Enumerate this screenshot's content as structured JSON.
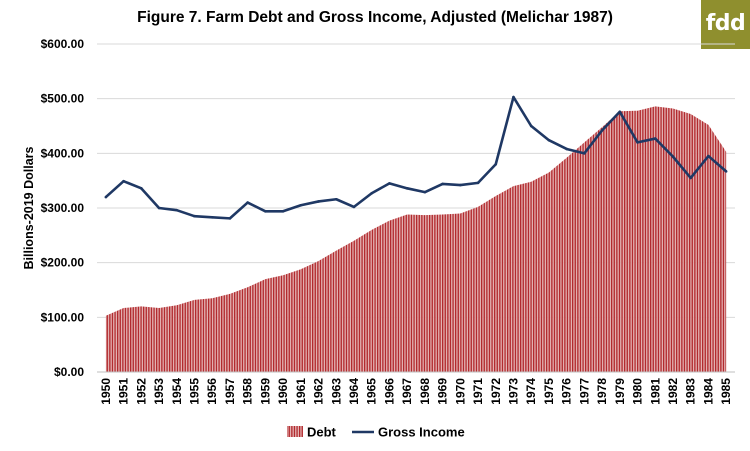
{
  "brand": {
    "logo_text": "fdd",
    "logo_color": "#8f8f2e"
  },
  "chart_data": {
    "type": "area",
    "title": "Figure 7. Farm Debt and Gross Income, Adjusted (Melichar 1987)",
    "xlabel": "",
    "ylabel": "Billions-2019 Dollars",
    "ylim": [
      0,
      600
    ],
    "y_ticks": [
      "$0.00",
      "$100.00",
      "$200.00",
      "$300.00",
      "$400.00",
      "$500.00",
      "$600.00"
    ],
    "y_tick_values": [
      0,
      100,
      200,
      300,
      400,
      500,
      600
    ],
    "grid": "horizontal",
    "legend_position": "bottom",
    "categories": [
      "1950",
      "1951",
      "1952",
      "1953",
      "1954",
      "1955",
      "1956",
      "1957",
      "1958",
      "1959",
      "1960",
      "1961",
      "1962",
      "1963",
      "1964",
      "1965",
      "1966",
      "1967",
      "1968",
      "1969",
      "1970",
      "1971",
      "1972",
      "1973",
      "1974",
      "1975",
      "1976",
      "1977",
      "1978",
      "1979",
      "1980",
      "1981",
      "1982",
      "1983",
      "1984",
      "1985"
    ],
    "series": [
      {
        "name": "Debt",
        "type": "area",
        "color": "#b22a2e",
        "values": [
          103,
          117,
          120,
          117,
          122,
          132,
          135,
          143,
          155,
          170,
          177,
          188,
          203,
          222,
          240,
          260,
          277,
          288,
          287,
          288,
          290,
          302,
          322,
          340,
          348,
          365,
          392,
          420,
          448,
          477,
          478,
          486,
          482,
          472,
          452,
          403
        ]
      },
      {
        "name": "Gross Income",
        "type": "line",
        "color": "#1f3864",
        "values": [
          320,
          349,
          336,
          300,
          296,
          285,
          283,
          281,
          310,
          294,
          294,
          305,
          312,
          316,
          302,
          327,
          345,
          336,
          329,
          344,
          342,
          346,
          380,
          503,
          450,
          424,
          408,
          400,
          442,
          476,
          420,
          427,
          394,
          355,
          395,
          367
        ]
      }
    ]
  }
}
